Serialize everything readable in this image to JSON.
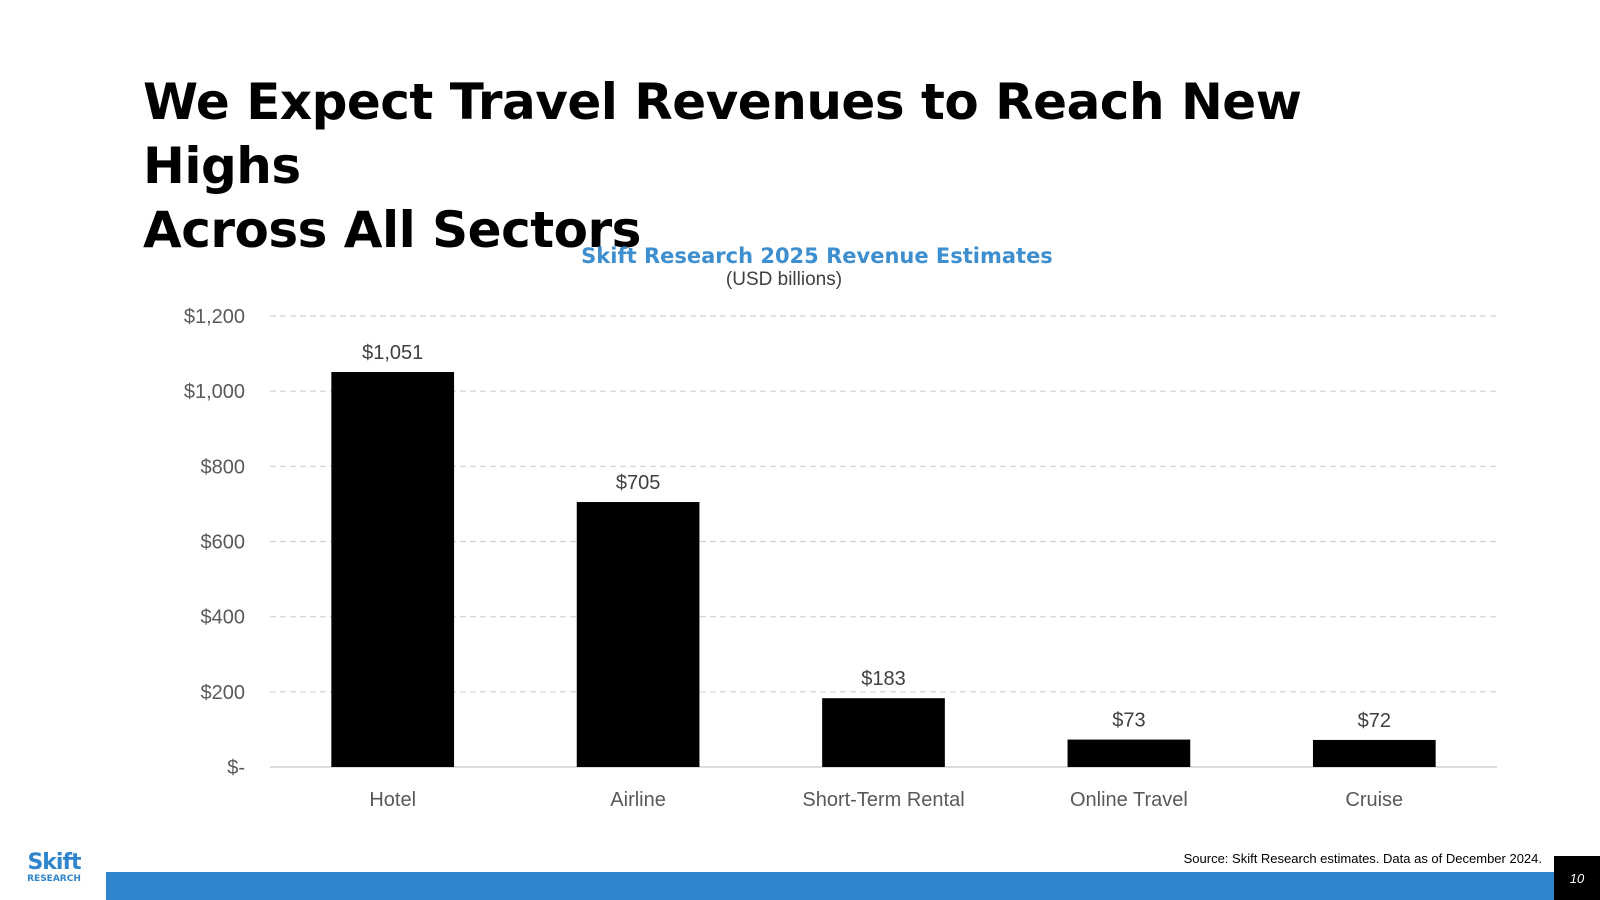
{
  "slide": {
    "title_lines": [
      "We Expect Travel Revenues to Reach New Highs",
      "Across All Sectors"
    ],
    "source": "Source: Skift Research estimates. Data as of December 2024.",
    "page_number": "10",
    "logo": {
      "brand": "Skift",
      "sub": "RESEARCH"
    },
    "accent_color": "#2F86CC"
  },
  "chart_data": {
    "type": "bar",
    "title": "Skift Research 2025 Revenue Estimates",
    "subtitle": "(USD billions)",
    "categories": [
      "Hotel",
      "Airline",
      "Short-Term Rental",
      "Online Travel",
      "Cruise"
    ],
    "values": [
      1051,
      705,
      183,
      73,
      72
    ],
    "data_labels": [
      "$1,051",
      "$705",
      "$183",
      "$73",
      "$72"
    ],
    "ylim": [
      0,
      1200
    ],
    "yticks": [
      0,
      200,
      400,
      600,
      800,
      1000,
      1200
    ],
    "ytick_labels": [
      "$-",
      "$200",
      "$400",
      "$600",
      "$800",
      "$1,000",
      "$1,200"
    ],
    "bar_color": "#000000",
    "title_color": "#3E8FCF",
    "grid": true,
    "legend": "none"
  }
}
